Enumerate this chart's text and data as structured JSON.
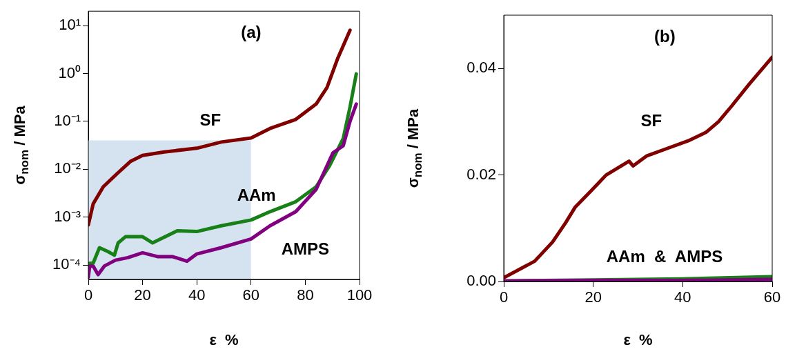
{
  "chart_data": [
    {
      "type": "line",
      "title": "(a)",
      "xlabel": "ε  %",
      "ylabel": "σ$_{nom}$ / MPa",
      "log": "y",
      "grid": false,
      "line_style": "solid",
      "marker": "none",
      "xlim": [
        0,
        100
      ],
      "xticks": [
        0,
        20,
        40,
        60,
        80,
        100
      ],
      "ylim": [
        5e-05,
        20
      ],
      "yticks": [
        {
          "value": 0.0001,
          "label": "10⁻⁴"
        },
        {
          "value": 0.001,
          "label": "10⁻³"
        },
        {
          "value": 0.01,
          "label": "10⁻²"
        },
        {
          "value": 0.1,
          "label": "10⁻¹"
        },
        {
          "value": 1,
          "label": "10⁰"
        },
        {
          "value": 10,
          "label": "10¹"
        }
      ],
      "series": [
        {
          "type": "area",
          "color": "#d5e2ef",
          "x": [
            0,
            60
          ],
          "values": [
            0.04,
            0.04
          ]
        },
        {
          "color": "#800000",
          "x": [
            0,
            1.8,
            5.5,
            11,
            15.5,
            20,
            28,
            40,
            49,
            60,
            67,
            76.5,
            84,
            88,
            92,
            96.5
          ],
          "values": [
            0.00069,
            0.0019,
            0.0043,
            0.0085,
            0.0145,
            0.0195,
            0.023,
            0.0275,
            0.037,
            0.045,
            0.071,
            0.11,
            0.23,
            0.51,
            2.1,
            8
          ]
        },
        {
          "color": "#178017",
          "x": [
            0,
            1.8,
            4.1,
            7.3,
            9.6,
            11,
            13.7,
            20,
            23.7,
            32.8,
            40,
            49,
            60,
            67,
            76.5,
            84,
            89,
            94,
            96.5,
            98.8
          ],
          "values": [
            0.000107,
            0.00011,
            0.00023,
            0.00019,
            0.00016,
            0.00029,
            0.00039,
            0.00039,
            0.00029,
            0.00052,
            0.0005,
            0.00066,
            0.00087,
            0.0013,
            0.0021,
            0.0043,
            0.012,
            0.044,
            0.2,
            0.98
          ]
        },
        {
          "color": "#800080",
          "x": [
            0,
            0.5,
            1.8,
            3.6,
            5.9,
            10,
            14.6,
            20,
            25.5,
            31,
            36.4,
            40,
            49,
            60,
            67,
            76.5,
            84,
            90.2,
            94,
            96.5,
            98.8
          ],
          "values": [
            5.6e-05,
            9.5e-05,
            9.5e-05,
            6.3e-05,
            9.5e-05,
            0.000126,
            0.000143,
            0.00018,
            0.00015,
            0.00015,
            0.00012,
            0.00017,
            0.00023,
            0.00035,
            0.00066,
            0.0013,
            0.0038,
            0.022,
            0.031,
            0.1,
            0.23
          ]
        }
      ],
      "annotations": [
        "SF",
        "AAm",
        "AMPS"
      ]
    },
    {
      "type": "line",
      "title": "(b)",
      "xlabel": "ε  %",
      "ylabel": "σ$_{nom}$ / MPa",
      "grid": false,
      "line_style": "solid",
      "marker": "none",
      "xlim": [
        0,
        60
      ],
      "xticks": [
        0,
        20,
        40,
        60
      ],
      "ylim": [
        0,
        0.05
      ],
      "yticks": [
        {
          "value": 0,
          "label": "0.00"
        },
        {
          "value": 0.02,
          "label": "0.02"
        },
        {
          "value": 0.04,
          "label": "0.04"
        }
      ],
      "series": [
        {
          "color": "#800000",
          "x": [
            0,
            6.9,
            10.9,
            13.8,
            16,
            19.5,
            22.9,
            28,
            28.9,
            32,
            36.6,
            41.2,
            45.2,
            48,
            50.9,
            54.9,
            60
          ],
          "values": [
            0.0007,
            0.0038,
            0.0074,
            0.011,
            0.014,
            0.017,
            0.02,
            0.0226,
            0.0217,
            0.0236,
            0.025,
            0.0264,
            0.028,
            0.03,
            0.0329,
            0.0371,
            0.0421
          ]
        },
        {
          "color": "#178017",
          "x": [
            0,
            20,
            40,
            60
          ],
          "values": [
            0.0001,
            0.0003,
            0.0005,
            0.0009
          ]
        },
        {
          "color": "#800080",
          "x": [
            0,
            20,
            40,
            60
          ],
          "values": [
            0.0001,
            0.0002,
            0.0002,
            0.0004
          ]
        }
      ],
      "annotations": [
        "SF",
        "AAm  &  AMPS"
      ]
    }
  ]
}
